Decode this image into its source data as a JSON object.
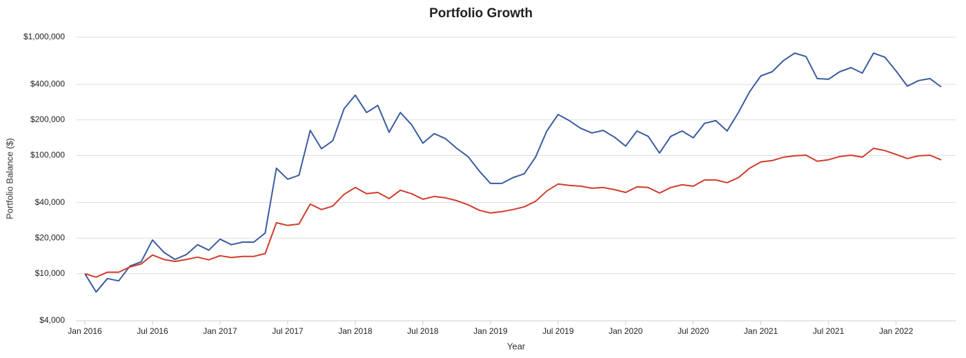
{
  "chart_data": {
    "type": "line",
    "title": "Portfolio Growth",
    "x_label": "Year",
    "y_label": "Portfolio Balance ($)",
    "categories": [
      "Jan 2016",
      null,
      null,
      null,
      null,
      null,
      "Jul 2016",
      null,
      null,
      null,
      null,
      null,
      "Jan 2017",
      null,
      null,
      null,
      null,
      null,
      "Jul 2017",
      null,
      null,
      null,
      null,
      null,
      "Jan 2018",
      null,
      null,
      null,
      null,
      null,
      "Jul 2018",
      null,
      null,
      null,
      null,
      null,
      "Jan 2019",
      null,
      null,
      null,
      null,
      null,
      "Jul 2019",
      null,
      null,
      null,
      null,
      null,
      "Jan 2020",
      null,
      null,
      null,
      null,
      null,
      "Jul 2020",
      null,
      null,
      null,
      null,
      null,
      "Jan 2021",
      null,
      null,
      null,
      null,
      null,
      "Jul 2021",
      null,
      null,
      null,
      null,
      null,
      "Jan 2022",
      null,
      null,
      null,
      null
    ],
    "series": [
      {
        "color": "#3a5ba0",
        "values": [
          10000,
          7000,
          9100,
          8700,
          11600,
          12600,
          19300,
          15200,
          13200,
          14500,
          17600,
          15800,
          19600,
          17600,
          18500,
          18500,
          22100,
          78000,
          63000,
          68000,
          163000,
          114000,
          133000,
          248000,
          324000,
          231000,
          265000,
          157000,
          231000,
          182000,
          127000,
          153000,
          139000,
          115000,
          98000,
          74000,
          58000,
          58000,
          65000,
          70000,
          97000,
          161000,
          222000,
          197000,
          170000,
          155000,
          163000,
          143000,
          120000,
          161000,
          145000,
          105000,
          145000,
          161000,
          141000,
          187000,
          197000,
          161000,
          231000,
          346000,
          471000,
          511000,
          634000,
          734000,
          687000,
          447000,
          441000,
          511000,
          554000,
          497000,
          734000,
          678000,
          518000,
          386000,
          430000,
          447000,
          380000
        ]
      },
      {
        "color": "#d03b2a",
        "values": [
          10000,
          9350,
          10300,
          10300,
          11400,
          12100,
          14400,
          13200,
          12700,
          13200,
          13800,
          13100,
          14200,
          13700,
          14000,
          14000,
          14800,
          27000,
          25600,
          26300,
          38800,
          34900,
          37300,
          46900,
          53600,
          47500,
          48700,
          43200,
          50800,
          47500,
          42600,
          45000,
          43800,
          41500,
          38300,
          34400,
          32600,
          33500,
          34900,
          36800,
          41000,
          50100,
          57300,
          55800,
          55000,
          52800,
          53600,
          51400,
          48700,
          54300,
          53600,
          48100,
          53600,
          56500,
          55000,
          62100,
          62100,
          58900,
          65000,
          78000,
          88100,
          90500,
          96700,
          99300,
          100600,
          89300,
          92000,
          98000,
          100600,
          96700,
          115000,
          110000,
          102000,
          94200,
          99300,
          100600,
          91700
        ]
      }
    ],
    "log_scale": true,
    "grid": true,
    "ylim": [
      4000,
      1000000
    ],
    "yticks": [
      {
        "value": 4000,
        "label": "$4,000"
      },
      {
        "value": 10000,
        "label": "$10,000"
      },
      {
        "value": 20000,
        "label": "$20,000"
      },
      {
        "value": 40000,
        "label": "$40,000"
      },
      {
        "value": 100000,
        "label": "$100,000"
      },
      {
        "value": 200000,
        "label": "$200,000"
      },
      {
        "value": 400000,
        "label": "$400,000"
      },
      {
        "value": 1000000,
        "label": "$1,000,000"
      }
    ]
  }
}
